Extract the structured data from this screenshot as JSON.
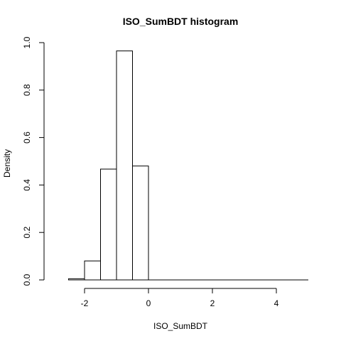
{
  "chart_data": {
    "type": "bar",
    "title": "ISO_SumBDT  histogram",
    "xlabel": "ISO_SumBDT",
    "ylabel": "Density",
    "xlim": [
      -3,
      5
    ],
    "ylim": [
      0,
      1.0
    ],
    "x_ticks": [
      -2,
      0,
      2,
      4
    ],
    "x_tick_labels": [
      "-2",
      "0",
      "2",
      "4"
    ],
    "y_ticks": [
      0.0,
      0.2,
      0.4,
      0.6,
      0.8,
      1.0
    ],
    "y_tick_labels": [
      "0.0",
      "0.2",
      "0.4",
      "0.6",
      "0.8",
      "1.0"
    ],
    "bins": [
      {
        "start": -2.5,
        "end": -2.0,
        "density": 0.005
      },
      {
        "start": -2.0,
        "end": -1.5,
        "density": 0.08
      },
      {
        "start": -1.5,
        "end": -1.0,
        "density": 0.467
      },
      {
        "start": -1.0,
        "end": -0.5,
        "density": 0.965
      },
      {
        "start": -0.5,
        "end": 0.0,
        "density": 0.48
      },
      {
        "start": 0.0,
        "end": 0.5,
        "density": 0
      },
      {
        "start": 0.5,
        "end": 1.0,
        "density": 0
      },
      {
        "start": 1.0,
        "end": 1.5,
        "density": 0
      },
      {
        "start": 1.5,
        "end": 2.0,
        "density": 0
      },
      {
        "start": 2.0,
        "end": 2.5,
        "density": 0
      },
      {
        "start": 2.5,
        "end": 3.0,
        "density": 0
      },
      {
        "start": 3.0,
        "end": 3.5,
        "density": 0
      },
      {
        "start": 3.5,
        "end": 4.0,
        "density": 0
      },
      {
        "start": 4.0,
        "end": 4.5,
        "density": 0
      },
      {
        "start": 4.5,
        "end": 5.0,
        "density": 0
      }
    ],
    "grid": false,
    "legend": "none"
  }
}
